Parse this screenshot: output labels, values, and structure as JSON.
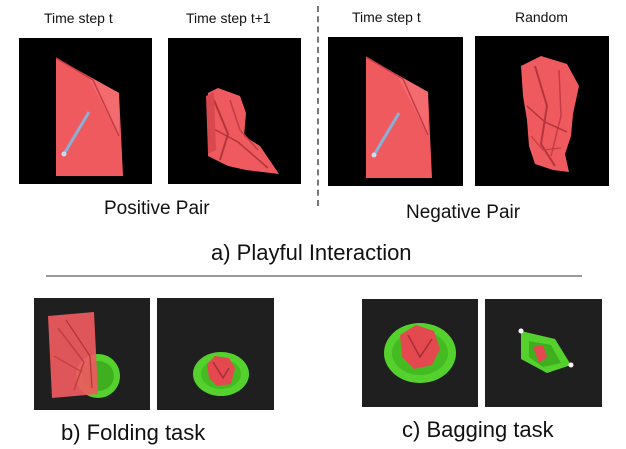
{
  "playful": {
    "labels": {
      "time_step_t_left": "Time step t",
      "time_step_t_plus_1": "Time step t+1",
      "time_step_t_right": "Time step t",
      "random": "Random"
    },
    "positive_pair": "Positive Pair",
    "negative_pair": "Negative Pair",
    "caption": "a) Playful Interaction"
  },
  "folding": {
    "caption": "b) Folding task"
  },
  "bagging": {
    "caption": "c) Bagging task"
  },
  "colors": {
    "cloth_red": "#ef5a5f",
    "bag_green": "#55d12d",
    "background_black": "#000000",
    "floor_dark": "#1f1f1f",
    "gripper_blue": "#8ab0d6"
  }
}
